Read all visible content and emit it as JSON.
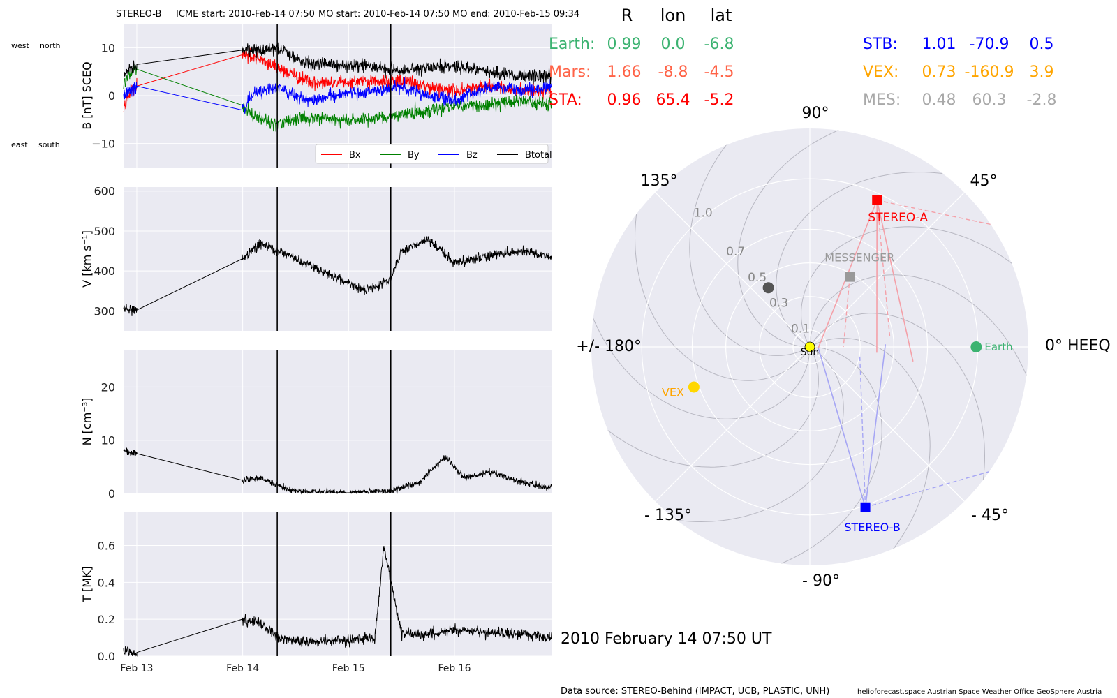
{
  "header": {
    "spacecraft": "STEREO-B",
    "icme_start": "ICME start: 2010-Feb-14 07:50",
    "mo_start": "MO start: 2010-Feb-14 07:50",
    "mo_end": "MO end: 2010-Feb-15 09:34"
  },
  "annotations": {
    "west": "west",
    "north": "north",
    "east": "east",
    "south": "south"
  },
  "timestamp": "2010 February 14  07:50 UT",
  "footer": {
    "data_source": "Data source: STEREO-Behind (IMPACT, UCB, PLASTIC, UNH)",
    "credits": "helioforecast.space   Austrian Space Weather Office   GeoSphere Austria"
  },
  "positions_table": {
    "headers": [
      "R",
      "lon",
      "lat"
    ],
    "rows_left": [
      {
        "label": "Earth:",
        "R": "0.99",
        "lon": "0.0",
        "lat": "-6.8",
        "color": "#3cb371"
      },
      {
        "label": "Mars:",
        "R": "1.66",
        "lon": "-8.8",
        "lat": "-4.5",
        "color": "#ff6347"
      },
      {
        "label": "STA:",
        "R": "0.96",
        "lon": "65.4",
        "lat": "-5.2",
        "color": "#ff0000"
      }
    ],
    "rows_right": [
      {
        "label": "STB:",
        "R": "1.01",
        "lon": "-70.9",
        "lat": "0.5",
        "color": "#0000ff"
      },
      {
        "label": "VEX:",
        "R": "0.73",
        "lon": "-160.9",
        "lat": "3.9",
        "color": "#ffa500"
      },
      {
        "label": "MES:",
        "R": "0.48",
        "lon": "60.3",
        "lat": "-2.8",
        "color": "#a9a9a9"
      }
    ]
  },
  "chart_data": [
    {
      "type": "line",
      "panel": "magnetic_field",
      "ylabel": "B [nT] SCEQ",
      "ylim": [
        -15,
        15
      ],
      "yticks": [
        -10,
        0,
        10
      ],
      "xlim": [
        "2010-02-12T21:00",
        "2010-02-16T22:00"
      ],
      "xticks": [
        {
          "label": "Feb 13",
          "t": "2010-02-13T00:00"
        },
        {
          "label": "Feb 14",
          "t": "2010-02-14T00:00"
        },
        {
          "label": "Feb 15",
          "t": "2010-02-15T00:00"
        },
        {
          "label": "Feb 16",
          "t": "2010-02-16T00:00"
        }
      ],
      "event_lines": [
        "2010-02-14T07:50",
        "2010-02-15T09:34"
      ],
      "legend": "lower-right",
      "series": [
        {
          "name": "Bx",
          "color": "#ff0000",
          "points": [
            [
              "2010-02-12T21:00",
              -2
            ],
            [
              "2010-02-12T22:00",
              0
            ],
            [
              "2010-02-13T00:00",
              2
            ],
            [
              "2010-02-13T23:50",
              8.5
            ],
            [
              "2010-02-14T02:00",
              8
            ],
            [
              "2010-02-14T07:50",
              6
            ],
            [
              "2010-02-14T14:00",
              3
            ],
            [
              "2010-02-14T20:00",
              2.5
            ],
            [
              "2010-02-15T06:00",
              3
            ],
            [
              "2010-02-15T12:00",
              3
            ],
            [
              "2010-02-15T18:00",
              2
            ],
            [
              "2010-02-16T00:00",
              1
            ],
            [
              "2010-02-16T08:00",
              2
            ],
            [
              "2010-02-16T16:00",
              1
            ],
            [
              "2010-02-16T22:00",
              1
            ]
          ]
        },
        {
          "name": "By",
          "color": "#008000",
          "points": [
            [
              "2010-02-12T21:00",
              2
            ],
            [
              "2010-02-12T22:00",
              4
            ],
            [
              "2010-02-13T00:00",
              5.5
            ],
            [
              "2010-02-13T23:50",
              -2
            ],
            [
              "2010-02-14T02:00",
              -4
            ],
            [
              "2010-02-14T07:50",
              -6
            ],
            [
              "2010-02-14T14:00",
              -4.5
            ],
            [
              "2010-02-14T20:00",
              -5
            ],
            [
              "2010-02-15T06:00",
              -5
            ],
            [
              "2010-02-15T12:00",
              -4
            ],
            [
              "2010-02-15T18:00",
              -3
            ],
            [
              "2010-02-16T00:00",
              -2
            ],
            [
              "2010-02-16T08:00",
              -2
            ],
            [
              "2010-02-16T16:00",
              -1
            ],
            [
              "2010-02-16T22:00",
              -2
            ]
          ]
        },
        {
          "name": "Bz",
          "color": "#0000ff",
          "points": [
            [
              "2010-02-12T21:00",
              0
            ],
            [
              "2010-02-12T22:00",
              1
            ],
            [
              "2010-02-13T00:00",
              2
            ],
            [
              "2010-02-13T23:50",
              -3
            ],
            [
              "2010-02-14T02:00",
              0
            ],
            [
              "2010-02-14T07:50",
              2
            ],
            [
              "2010-02-14T14:00",
              -1
            ],
            [
              "2010-02-14T20:00",
              0
            ],
            [
              "2010-02-15T06:00",
              1
            ],
            [
              "2010-02-15T12:00",
              2
            ],
            [
              "2010-02-15T18:00",
              0
            ],
            [
              "2010-02-16T00:00",
              -1
            ],
            [
              "2010-02-16T08:00",
              2
            ],
            [
              "2010-02-16T16:00",
              1
            ],
            [
              "2010-02-16T22:00",
              2
            ]
          ]
        },
        {
          "name": "Btotal",
          "color": "#000000",
          "points": [
            [
              "2010-02-12T21:00",
              4
            ],
            [
              "2010-02-12T22:00",
              5
            ],
            [
              "2010-02-13T00:00",
              6.5
            ],
            [
              "2010-02-13T23:50",
              9.5
            ],
            [
              "2010-02-14T02:00",
              9.5
            ],
            [
              "2010-02-14T07:50",
              10
            ],
            [
              "2010-02-14T14:00",
              7
            ],
            [
              "2010-02-14T20:00",
              6.5
            ],
            [
              "2010-02-15T06:00",
              6
            ],
            [
              "2010-02-15T12:00",
              5
            ],
            [
              "2010-02-15T18:00",
              6
            ],
            [
              "2010-02-16T00:00",
              6
            ],
            [
              "2010-02-16T08:00",
              5
            ],
            [
              "2010-02-16T16:00",
              4
            ],
            [
              "2010-02-16T22:00",
              4
            ]
          ]
        }
      ]
    },
    {
      "type": "line",
      "panel": "speed",
      "ylabel": "V [km s⁻¹]",
      "ylim": [
        250,
        610
      ],
      "yticks": [
        300,
        400,
        500,
        600
      ],
      "event_lines": [
        "2010-02-14T07:50",
        "2010-02-15T09:34"
      ],
      "series": [
        {
          "name": "V",
          "color": "#000000",
          "points": [
            [
              "2010-02-12T21:00",
              305
            ],
            [
              "2010-02-13T00:00",
              302
            ],
            [
              "2010-02-13T23:50",
              430
            ],
            [
              "2010-02-14T04:00",
              470
            ],
            [
              "2010-02-14T07:50",
              450
            ],
            [
              "2010-02-14T12:00",
              430
            ],
            [
              "2010-02-14T18:00",
              400
            ],
            [
              "2010-02-15T00:00",
              370
            ],
            [
              "2010-02-15T04:00",
              350
            ],
            [
              "2010-02-15T09:34",
              380
            ],
            [
              "2010-02-15T12:00",
              450
            ],
            [
              "2010-02-15T18:00",
              480
            ],
            [
              "2010-02-16T00:00",
              420
            ],
            [
              "2010-02-16T08:00",
              440
            ],
            [
              "2010-02-16T16:00",
              450
            ],
            [
              "2010-02-16T22:00",
              435
            ]
          ]
        }
      ]
    },
    {
      "type": "line",
      "panel": "density",
      "ylabel": "N [cm⁻³]",
      "ylim": [
        0,
        27
      ],
      "yticks": [
        0,
        10,
        20
      ],
      "event_lines": [
        "2010-02-14T07:50",
        "2010-02-15T09:34"
      ],
      "series": [
        {
          "name": "N",
          "color": "#000000",
          "points": [
            [
              "2010-02-12T21:00",
              8
            ],
            [
              "2010-02-13T00:00",
              7.5
            ],
            [
              "2010-02-13T23:50",
              2.5
            ],
            [
              "2010-02-14T04:00",
              3
            ],
            [
              "2010-02-14T07:50",
              1.5
            ],
            [
              "2010-02-14T12:00",
              0.5
            ],
            [
              "2010-02-15T00:00",
              0.1
            ],
            [
              "2010-02-15T09:34",
              0.5
            ],
            [
              "2010-02-15T16:00",
              2
            ],
            [
              "2010-02-15T22:00",
              7
            ],
            [
              "2010-02-16T02:00",
              3
            ],
            [
              "2010-02-16T08:00",
              4
            ],
            [
              "2010-02-16T16:00",
              2
            ],
            [
              "2010-02-16T22:00",
              1
            ]
          ]
        }
      ]
    },
    {
      "type": "line",
      "panel": "temperature",
      "ylabel": "T [MK]",
      "ylim": [
        0,
        0.78
      ],
      "yticks": [
        0.0,
        0.2,
        0.4,
        0.6
      ],
      "event_lines": [
        "2010-02-14T07:50",
        "2010-02-15T09:34"
      ],
      "series": [
        {
          "name": "T",
          "color": "#000000",
          "points": [
            [
              "2010-02-12T21:00",
              0.03
            ],
            [
              "2010-02-13T00:00",
              0.02
            ],
            [
              "2010-02-13T23:50",
              0.2
            ],
            [
              "2010-02-14T04:00",
              0.18
            ],
            [
              "2010-02-14T07:50",
              0.1
            ],
            [
              "2010-02-14T14:00",
              0.08
            ],
            [
              "2010-02-14T20:00",
              0.08
            ],
            [
              "2010-02-15T06:00",
              0.1
            ],
            [
              "2010-02-15T08:00",
              0.6
            ],
            [
              "2010-02-15T12:00",
              0.12
            ],
            [
              "2010-02-15T18:00",
              0.12
            ],
            [
              "2010-02-16T00:00",
              0.14
            ],
            [
              "2010-02-16T08:00",
              0.13
            ],
            [
              "2010-02-16T16:00",
              0.12
            ],
            [
              "2010-02-16T22:00",
              0.1
            ]
          ]
        }
      ]
    },
    {
      "type": "scatter",
      "panel": "polar_positions",
      "angle_labels": [
        "0° HEEQ",
        "45°",
        "90°",
        "135°",
        "+/- 180°",
        "- 135°",
        "- 90°",
        "- 45°"
      ],
      "radial_labels": [
        "0.1",
        "0.3",
        "0.5",
        "0.7",
        "1.0"
      ],
      "bodies": [
        {
          "name": "Sun",
          "r": 0.0,
          "lon": 0,
          "color": "#ffff00",
          "marker": "circle"
        },
        {
          "name": "Earth",
          "r": 0.99,
          "lon": 0.0,
          "color": "#3cb371",
          "marker": "circle"
        },
        {
          "name": "STEREO-A",
          "r": 0.96,
          "lon": 65.4,
          "color": "#ff0000",
          "marker": "square"
        },
        {
          "name": "STEREO-B",
          "r": 1.01,
          "lon": -70.9,
          "color": "#0000ff",
          "marker": "square"
        },
        {
          "name": "VEX",
          "r": 0.73,
          "lon": -160.9,
          "color": "#ffd700",
          "marker": "circle"
        },
        {
          "name": "MESSENGER",
          "r": 0.48,
          "lon": 60.3,
          "color": "#999999",
          "marker": "square"
        },
        {
          "name": "",
          "r": 0.43,
          "lon": 125,
          "color": "#555555",
          "marker": "circle"
        }
      ]
    }
  ]
}
